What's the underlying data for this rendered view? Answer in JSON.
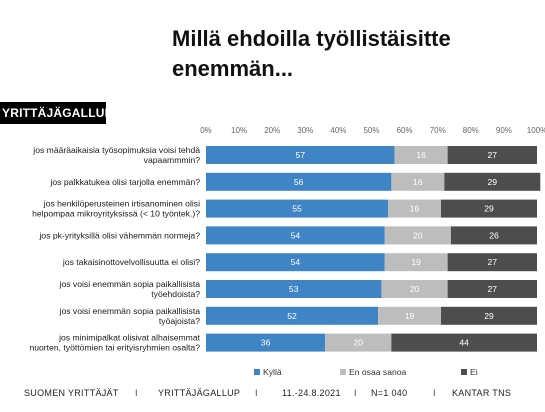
{
  "title": "Millä ehdoilla työllistäisitte enemmän...",
  "badge": "YRITTÄJÄGALLUP",
  "colors": {
    "kylla": "#3f85c6",
    "eos": "#bdbdbd",
    "ei": "#4d4d4d"
  },
  "chart_data": {
    "type": "bar",
    "orientation": "horizontal",
    "stacked": true,
    "x_ticks": [
      "0%",
      "10%",
      "20%",
      "30%",
      "40%",
      "50%",
      "60%",
      "70%",
      "80%",
      "90%",
      "100%"
    ],
    "xlim": [
      0,
      100
    ],
    "categories": [
      [
        "jos määräaikaisia työsopimuksia voisi tehdä",
        "vapaammmin?"
      ],
      [
        "jos palkkatukea olisi tarjolla enemmän?"
      ],
      [
        "jos henkilöperusteinen irtisanominen olisi",
        "helpompaa mikroyrityksissä (< 10 työntek.)?"
      ],
      [
        "jos pk-yrityksillä olisi vähemmän normeja?"
      ],
      [
        "jos takaisinottovelvollisuutta ei olisi?"
      ],
      [
        "jos voisi enemmän sopia paikallisista",
        "työehdoista?"
      ],
      [
        "jos voisi enemmän sopia paikallisista",
        "työajoista?"
      ],
      [
        "jos minimipalkat olisivat alhaisemmat",
        "nuorten, työttömien tai erityisryhmien osalta?"
      ]
    ],
    "series": [
      {
        "name": "Kyllä",
        "values": [
          57,
          56,
          55,
          54,
          54,
          53,
          52,
          36
        ]
      },
      {
        "name": "En osaa sanoa",
        "values": [
          16,
          16,
          16,
          20,
          19,
          20,
          19,
          20
        ]
      },
      {
        "name": "Ei",
        "values": [
          27,
          29,
          29,
          26,
          27,
          27,
          29,
          44
        ]
      }
    ],
    "legend_position": "bottom-right",
    "grid": false
  },
  "footer": {
    "org": "SUOMEN YRITTÄJÄT",
    "sep": "I",
    "survey": "YRITTÄJÄGALLUP",
    "dates": "11.-24.8.2021",
    "n": "N=1 040",
    "source": "KANTAR TNS"
  }
}
